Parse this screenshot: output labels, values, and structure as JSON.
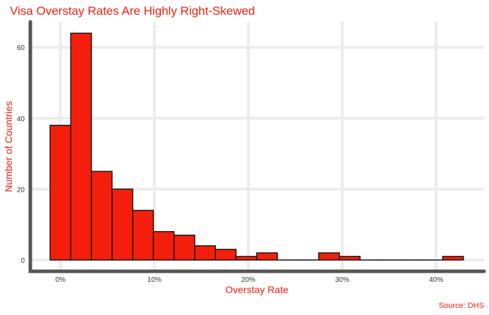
{
  "chart_data": {
    "type": "bar",
    "title": "Visa Overstay Rates Are Highly Right-Skewed",
    "xlabel": "Overstay Rate",
    "ylabel": "Number of Countries",
    "caption": "Source: DHS",
    "bin_width": 2.2,
    "bins": [
      {
        "start": -1.1,
        "end": 1.1,
        "count": 38
      },
      {
        "start": 1.1,
        "end": 3.3,
        "count": 64
      },
      {
        "start": 3.3,
        "end": 5.5,
        "count": 25
      },
      {
        "start": 5.5,
        "end": 7.7,
        "count": 20
      },
      {
        "start": 7.7,
        "end": 9.9,
        "count": 14
      },
      {
        "start": 9.9,
        "end": 12.1,
        "count": 8
      },
      {
        "start": 12.1,
        "end": 14.3,
        "count": 7
      },
      {
        "start": 14.3,
        "end": 16.5,
        "count": 4
      },
      {
        "start": 16.5,
        "end": 18.7,
        "count": 3
      },
      {
        "start": 18.7,
        "end": 20.9,
        "count": 1
      },
      {
        "start": 20.9,
        "end": 23.1,
        "count": 2
      },
      {
        "start": 23.1,
        "end": 25.3,
        "count": 0
      },
      {
        "start": 25.3,
        "end": 27.5,
        "count": 0
      },
      {
        "start": 27.5,
        "end": 29.7,
        "count": 2
      },
      {
        "start": 29.7,
        "end": 31.9,
        "count": 1
      },
      {
        "start": 31.9,
        "end": 34.1,
        "count": 0
      },
      {
        "start": 34.1,
        "end": 36.3,
        "count": 0
      },
      {
        "start": 36.3,
        "end": 38.5,
        "count": 0
      },
      {
        "start": 38.5,
        "end": 40.7,
        "count": 0
      },
      {
        "start": 40.7,
        "end": 42.9,
        "count": 1
      }
    ],
    "x_ticks": [
      {
        "value": 0,
        "label": "0%"
      },
      {
        "value": 10,
        "label": "10%"
      },
      {
        "value": 20,
        "label": "20%"
      },
      {
        "value": 30,
        "label": "30%"
      },
      {
        "value": 40,
        "label": "40%"
      }
    ],
    "y_ticks": [
      {
        "value": 0,
        "label": "0"
      },
      {
        "value": 20,
        "label": "20"
      },
      {
        "value": 40,
        "label": "40"
      },
      {
        "value": 60,
        "label": "60"
      }
    ],
    "xlim": [
      -3.2,
      45.1
    ],
    "ylim": [
      -3.2,
      67.2
    ],
    "grid": true,
    "colors": {
      "bar_fill": "#f41e0c",
      "bar_outline": "#111111",
      "text_accent": "#f41e0c",
      "axis": "#555555",
      "grid": "#ececec"
    }
  }
}
